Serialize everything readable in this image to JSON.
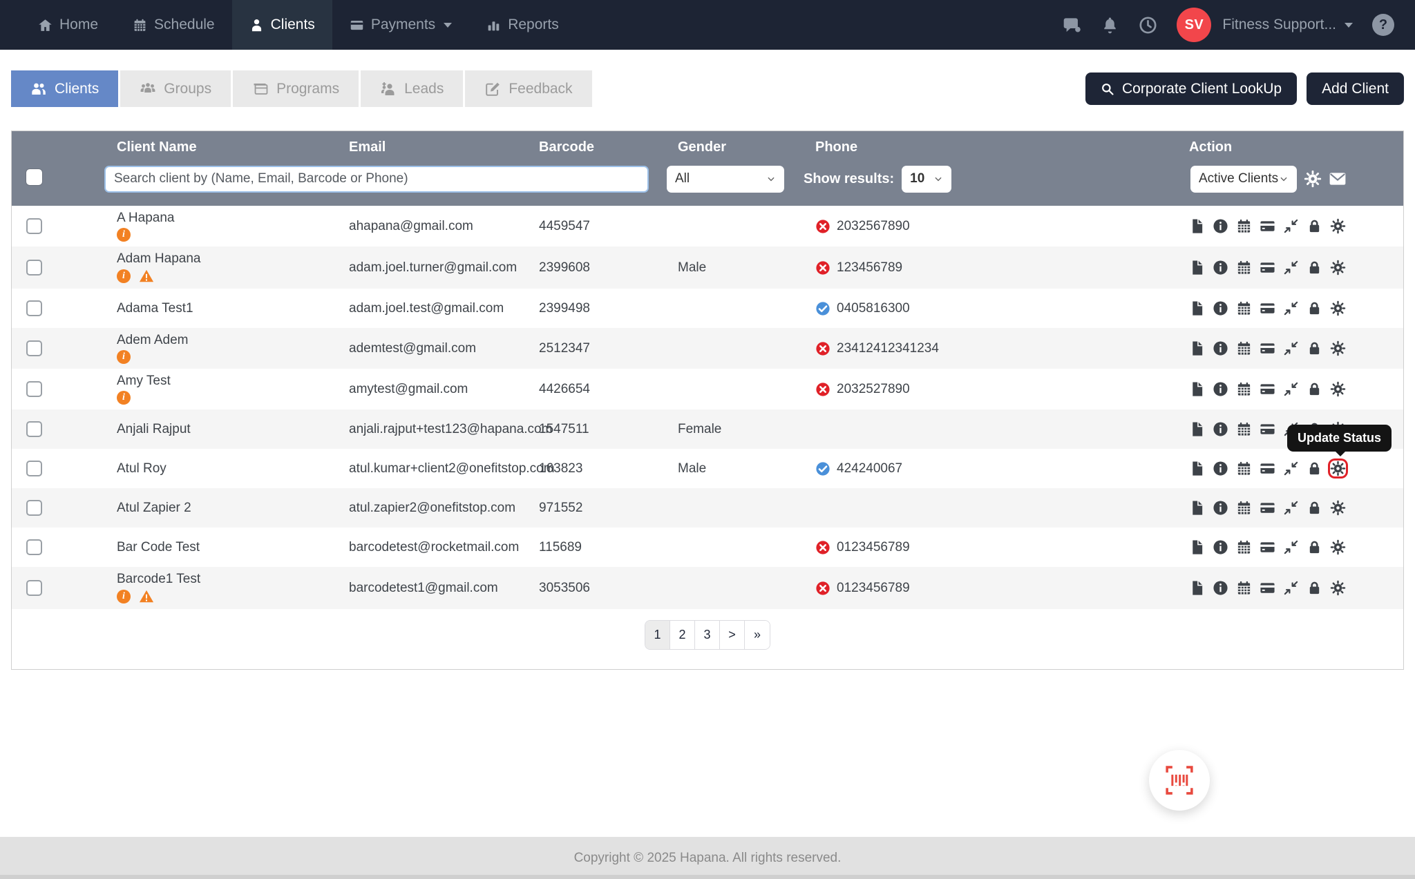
{
  "navbar": {
    "items": [
      {
        "label": "Home",
        "icon": "home-icon",
        "active": false
      },
      {
        "label": "Schedule",
        "icon": "calendar-icon",
        "active": false
      },
      {
        "label": "Clients",
        "icon": "person-icon",
        "active": true
      },
      {
        "label": "Payments",
        "icon": "credit-card-icon",
        "active": false,
        "has_caret": true
      },
      {
        "label": "Reports",
        "icon": "bar-chart-icon",
        "active": false
      }
    ],
    "right_icons": [
      "chat-icon",
      "bell-icon",
      "clock-icon",
      "help-icon"
    ],
    "account": {
      "initials": "SV",
      "name": "Fitness Support..."
    }
  },
  "tabs": [
    {
      "label": "Clients",
      "icon": "users-icon",
      "active": true
    },
    {
      "label": "Groups",
      "icon": "group-icon",
      "active": false
    },
    {
      "label": "Programs",
      "icon": "programs-icon",
      "active": false
    },
    {
      "label": "Leads",
      "icon": "leads-icon",
      "active": false
    },
    {
      "label": "Feedback",
      "icon": "feedback-icon",
      "active": false
    }
  ],
  "header_actions": {
    "corporate_lookup": "Corporate Client LookUp",
    "add_client": "Add Client"
  },
  "table": {
    "columns": [
      "Client Name",
      "Email",
      "Barcode",
      "Gender",
      "Phone",
      "Action"
    ],
    "filters": {
      "search_placeholder": "Search client by (Name, Email, Barcode or Phone)",
      "gender_value": "All",
      "show_results_label": "Show results:",
      "show_results_value": "10",
      "status_value": "Active Clients"
    },
    "action_icons": [
      "document-icon",
      "info-icon",
      "calendar-icon",
      "payment-card-icon",
      "compress-icon",
      "lock-icon",
      "settings-icon"
    ],
    "rows": [
      {
        "name": "A Hapana",
        "info": true,
        "warning": false,
        "email": "ahapana@gmail.com",
        "barcode": "4459547",
        "gender": "",
        "phone": "2032567890",
        "phone_status": "invalid"
      },
      {
        "name": "Adam Hapana",
        "info": true,
        "warning": true,
        "email": "adam.joel.turner@gmail.com",
        "barcode": "2399608",
        "gender": "Male",
        "phone": "123456789",
        "phone_status": "invalid"
      },
      {
        "name": "Adama Test1",
        "info": false,
        "warning": false,
        "email": "adam.joel.test@gmail.com",
        "barcode": "2399498",
        "gender": "",
        "phone": "0405816300",
        "phone_status": "valid"
      },
      {
        "name": "Adem Adem",
        "info": true,
        "warning": false,
        "email": "ademtest@gmail.com",
        "barcode": "2512347",
        "gender": "",
        "phone": "23412412341234",
        "phone_status": "invalid"
      },
      {
        "name": "Amy Test",
        "info": true,
        "warning": false,
        "email": "amytest@gmail.com",
        "barcode": "4426654",
        "gender": "",
        "phone": "2032527890",
        "phone_status": "invalid"
      },
      {
        "name": "Anjali Rajput",
        "info": false,
        "warning": false,
        "email": "anjali.rajput+test123@hapana.com",
        "barcode": "1547511",
        "gender": "Female",
        "phone": "",
        "phone_status": "none"
      },
      {
        "name": "Atul Roy",
        "info": false,
        "warning": false,
        "email": "atul.kumar+client2@onefitstop.com",
        "barcode": "163823",
        "gender": "Male",
        "phone": "424240067",
        "phone_status": "valid",
        "highlight_gear": true
      },
      {
        "name": "Atul Zapier 2",
        "info": false,
        "warning": false,
        "email": "atul.zapier2@onefitstop.com",
        "barcode": "971552",
        "gender": "",
        "phone": "",
        "phone_status": "none"
      },
      {
        "name": "Bar Code Test",
        "info": false,
        "warning": false,
        "email": "barcodetest@rocketmail.com",
        "barcode": "115689",
        "gender": "",
        "phone": "0123456789",
        "phone_status": "invalid"
      },
      {
        "name": "Barcode1 Test",
        "info": true,
        "warning": true,
        "email": "barcodetest1@gmail.com",
        "barcode": "3053506",
        "gender": "",
        "phone": "0123456789",
        "phone_status": "invalid"
      }
    ]
  },
  "pagination": [
    "1",
    "2",
    "3",
    ">",
    "»"
  ],
  "tooltip": "Update Status",
  "fab": {
    "icon": "barcode-scan-icon"
  },
  "footer": {
    "copyright": "Copyright © 2025 Hapana. All rights reserved."
  },
  "colors": {
    "navbar_bg": "#1d2434",
    "active_tab_blue": "#6588c7",
    "avatar_red": "#f2464b",
    "table_header_gray": "#7a8290",
    "info_orange": "#f28123",
    "phone_invalid_red": "#e02128",
    "phone_valid_blue": "#4a90d9",
    "tooltip_bg": "#141414",
    "fab_icon_red": "#e8493e"
  }
}
